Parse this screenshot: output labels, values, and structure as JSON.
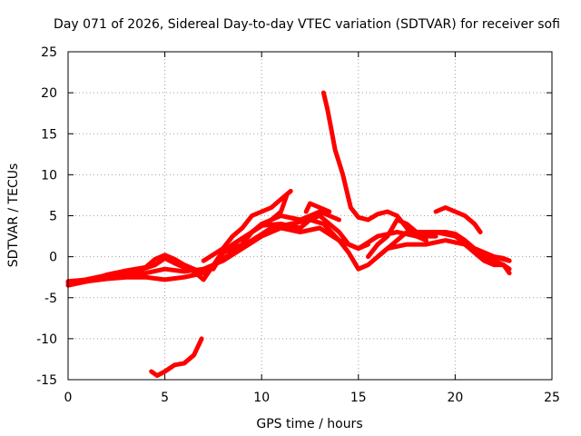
{
  "chart_data": {
    "type": "scatter",
    "title": "Day 071 of 2026, Sidereal Day-to-day VTEC variation (SDTVAR) for receiver sofi",
    "xlabel": "GPS time / hours",
    "ylabel": "SDTVAR / TECUs",
    "xlim": [
      0,
      25
    ],
    "ylim": [
      -15,
      25
    ],
    "xticks": [
      "0",
      "5",
      "10",
      "15",
      "20",
      "25"
    ],
    "yticks": [
      "-15",
      "-10",
      "-5",
      "0",
      "5",
      "10",
      "15",
      "20",
      "25"
    ],
    "grid": true,
    "marker": "+",
    "color": "#ff0000",
    "series": [
      {
        "name": "trace-1",
        "points": [
          [
            0,
            -3
          ],
          [
            1,
            -2.8
          ],
          [
            2,
            -2.5
          ],
          [
            3,
            -2.2
          ],
          [
            4,
            -2
          ],
          [
            5,
            -1.5
          ],
          [
            6,
            -1.8
          ],
          [
            7,
            -1.5
          ],
          [
            8,
            -0.5
          ],
          [
            9,
            1
          ],
          [
            10,
            2.5
          ],
          [
            11,
            3.5
          ],
          [
            12,
            3
          ],
          [
            13,
            3.5
          ],
          [
            14,
            2
          ],
          [
            15,
            1
          ],
          [
            16,
            2.5
          ],
          [
            17,
            3
          ],
          [
            18,
            2.5
          ],
          [
            19,
            3
          ],
          [
            20,
            2.5
          ],
          [
            21,
            1
          ],
          [
            22,
            0
          ],
          [
            22.8,
            -0.5
          ]
        ]
      },
      {
        "name": "trace-2",
        "points": [
          [
            0,
            -3.5
          ],
          [
            1,
            -3
          ],
          [
            2,
            -2.7
          ],
          [
            3,
            -2.5
          ],
          [
            4,
            -2.5
          ],
          [
            5,
            -2.8
          ],
          [
            6,
            -2.5
          ],
          [
            7,
            -2
          ],
          [
            7.5,
            -1
          ],
          [
            8.5,
            0.5
          ],
          [
            9.5,
            2
          ],
          [
            10.5,
            3.5
          ],
          [
            11.5,
            4
          ],
          [
            12.5,
            4.5
          ],
          [
            13.2,
            4
          ],
          [
            14,
            2
          ],
          [
            14.5,
            0.5
          ],
          [
            15,
            -1.5
          ],
          [
            15.5,
            -1
          ],
          [
            16,
            0
          ],
          [
            16.5,
            1
          ],
          [
            17.5,
            1.5
          ],
          [
            18.5,
            1.5
          ],
          [
            19.5,
            2
          ],
          [
            20.5,
            1.5
          ],
          [
            21.5,
            0
          ],
          [
            22.5,
            -1
          ],
          [
            22.8,
            -2
          ]
        ]
      },
      {
        "name": "trace-3",
        "points": [
          [
            0.5,
            -3
          ],
          [
            1.5,
            -2.5
          ],
          [
            2.5,
            -2
          ],
          [
            3.5,
            -1.8
          ],
          [
            4.5,
            -1
          ],
          [
            5,
            -0.2
          ],
          [
            5.5,
            -0.8
          ],
          [
            6.5,
            -1.8
          ],
          [
            7,
            -2.8
          ],
          [
            7.8,
            0
          ],
          [
            8.5,
            1.5
          ],
          [
            9.5,
            3
          ],
          [
            10.5,
            4.5
          ],
          [
            11,
            5.5
          ],
          [
            11.3,
            7.5
          ]
        ]
      },
      {
        "name": "trace-4",
        "points": [
          [
            0,
            -3.2
          ],
          [
            1,
            -3
          ],
          [
            2,
            -2.2
          ],
          [
            3,
            -1.7
          ],
          [
            4,
            -1.3
          ],
          [
            4.5,
            -0.3
          ],
          [
            5,
            0.2
          ],
          [
            5.5,
            -0.3
          ],
          [
            6,
            -1
          ],
          [
            6.5,
            -1.5
          ],
          [
            7,
            -2
          ]
        ]
      },
      {
        "name": "trace-5",
        "points": [
          [
            7.5,
            -1.5
          ],
          [
            8,
            0.5
          ],
          [
            9,
            1.5
          ],
          [
            9.5,
            3
          ],
          [
            10,
            4
          ],
          [
            10.5,
            4.5
          ],
          [
            11,
            5
          ],
          [
            12,
            4.5
          ],
          [
            12.5,
            5
          ],
          [
            13,
            5.5
          ],
          [
            13.5,
            5
          ],
          [
            14,
            4.5
          ]
        ]
      },
      {
        "name": "trace-6",
        "points": [
          [
            7,
            -0.5
          ],
          [
            8,
            1
          ],
          [
            8.5,
            2.5
          ],
          [
            9,
            3.5
          ],
          [
            9.5,
            5
          ],
          [
            10,
            5.5
          ],
          [
            10.5,
            6
          ],
          [
            11,
            7
          ],
          [
            11.5,
            8
          ]
        ]
      },
      {
        "name": "trace-7",
        "points": [
          [
            9,
            2
          ],
          [
            9.5,
            3
          ],
          [
            10,
            3.8
          ],
          [
            11,
            4
          ],
          [
            12,
            3.5
          ],
          [
            12.5,
            4.5
          ],
          [
            13,
            5
          ],
          [
            13.5,
            4
          ],
          [
            14,
            3
          ],
          [
            14.5,
            1.5
          ],
          [
            15,
            1
          ],
          [
            15.5,
            1.5
          ]
        ]
      },
      {
        "name": "trace-8",
        "points": [
          [
            12.3,
            5.5
          ],
          [
            12.5,
            6.5
          ],
          [
            13,
            6
          ],
          [
            13.5,
            5.5
          ]
        ]
      },
      {
        "name": "trace-9",
        "points": [
          [
            13.2,
            20
          ],
          [
            13.4,
            18
          ],
          [
            13.6,
            15.5
          ],
          [
            13.8,
            13
          ],
          [
            14,
            11.5
          ],
          [
            14.2,
            10
          ],
          [
            14.4,
            8
          ],
          [
            14.6,
            6
          ],
          [
            15,
            4.8
          ],
          [
            15.5,
            4.5
          ],
          [
            16,
            5.2
          ],
          [
            16.5,
            5.5
          ],
          [
            17,
            5
          ],
          [
            17.5,
            3.5
          ],
          [
            18,
            3
          ],
          [
            18.5,
            3
          ],
          [
            19,
            3
          ],
          [
            19.5,
            3
          ],
          [
            20,
            2.8
          ],
          [
            20.5,
            2
          ],
          [
            21,
            1
          ],
          [
            21.5,
            0.5
          ],
          [
            22,
            0
          ],
          [
            22.5,
            -0.2
          ],
          [
            22.8,
            -0.5
          ]
        ]
      },
      {
        "name": "trace-10",
        "points": [
          [
            16,
            0
          ],
          [
            16.5,
            1
          ],
          [
            17,
            2
          ],
          [
            17.5,
            3
          ],
          [
            18,
            2.5
          ],
          [
            18.5,
            2
          ]
        ]
      },
      {
        "name": "trace-11",
        "points": [
          [
            19,
            5.5
          ],
          [
            19.5,
            6
          ],
          [
            20,
            5.5
          ],
          [
            20.5,
            5
          ],
          [
            21,
            4
          ],
          [
            21.3,
            3
          ]
        ]
      },
      {
        "name": "trace-12",
        "points": [
          [
            15.5,
            0
          ],
          [
            16,
            1.5
          ],
          [
            16.5,
            2.5
          ],
          [
            17,
            4.5
          ],
          [
            17.5,
            4
          ],
          [
            18,
            3
          ],
          [
            18.5,
            2.5
          ],
          [
            19,
            2.5
          ]
        ]
      },
      {
        "name": "trace-13",
        "points": [
          [
            20.5,
            1.5
          ],
          [
            21,
            0.5
          ],
          [
            21.5,
            -0.5
          ],
          [
            22,
            -1
          ],
          [
            22.5,
            -1
          ],
          [
            22.8,
            -1.5
          ]
        ]
      },
      {
        "name": "trace-14",
        "points": [
          [
            4.3,
            -14
          ],
          [
            4.6,
            -14.5
          ],
          [
            5,
            -14
          ],
          [
            5.5,
            -13.2
          ],
          [
            6,
            -13
          ],
          [
            6.5,
            -12
          ],
          [
            6.8,
            -10.5
          ],
          [
            6.9,
            -10
          ]
        ]
      }
    ]
  }
}
